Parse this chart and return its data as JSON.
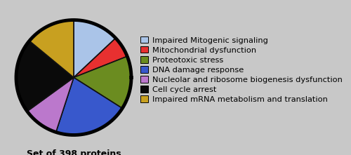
{
  "labels": [
    "Impaired Mitogenic signaling",
    "Mitochondrial dysfunction",
    "Proteotoxic stress",
    "DNA damage response",
    "Nucleolar and ribosome biogenesis dysfunction",
    "Cell cycle arrest",
    "Impaired mRNA metabolism and translation"
  ],
  "sizes": [
    13,
    6,
    15,
    21,
    10,
    21,
    14
  ],
  "colors": [
    "#aac4e8",
    "#e83030",
    "#6b8c20",
    "#3858cc",
    "#bb78cc",
    "#0a0a0a",
    "#c8a020"
  ],
  "edge_color": "#111111",
  "pie_bg_color": "#c8c8c8",
  "legend_bg_color": "#ffffff",
  "subtitle": "Set of 398 proteins",
  "subtitle_fontsize": 9,
  "startangle": 90,
  "legend_fontsize": 8.2,
  "pie_edge_linewidth": 3.5
}
